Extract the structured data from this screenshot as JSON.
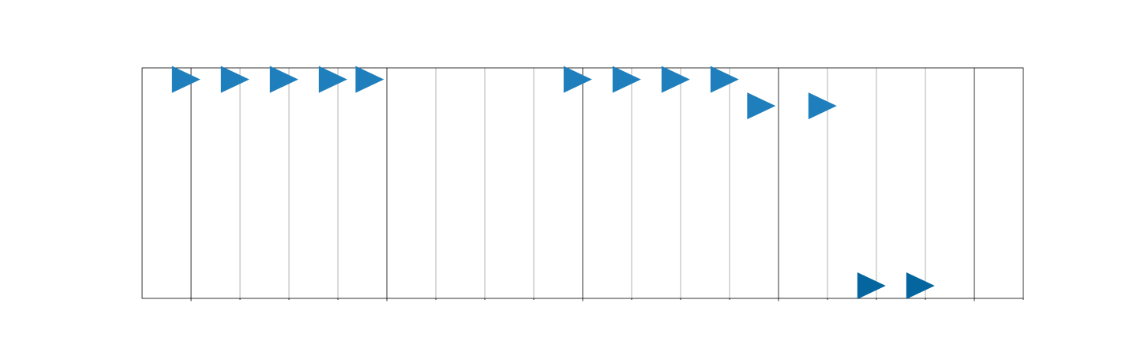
{
  "chart_data": {
    "type": "scatter",
    "marker": "triangle-right",
    "grid": true,
    "xlim": [
      0,
      18
    ],
    "ylim": [
      0,
      1
    ],
    "major_ticks": [
      1,
      5,
      9,
      13,
      17
    ],
    "minor_ticks": [
      2,
      3,
      4,
      6,
      7,
      8,
      10,
      11,
      12,
      14,
      15,
      16
    ],
    "colors": {
      "marker": "#1f7fbc",
      "marker_dark": "#04659f"
    },
    "series": [
      {
        "points": [
          {
            "x": 0.9,
            "y": 0.95
          },
          {
            "x": 1.9,
            "y": 0.95
          },
          {
            "x": 2.9,
            "y": 0.95
          },
          {
            "x": 3.9,
            "y": 0.95
          },
          {
            "x": 4.65,
            "y": 0.95
          },
          {
            "x": 8.9,
            "y": 0.95
          },
          {
            "x": 9.9,
            "y": 0.95
          },
          {
            "x": 10.9,
            "y": 0.95
          },
          {
            "x": 11.9,
            "y": 0.95
          },
          {
            "x": 12.65,
            "y": 0.835
          },
          {
            "x": 13.9,
            "y": 0.835
          },
          {
            "x": 14.9,
            "y": 0.055,
            "dark": true
          },
          {
            "x": 15.9,
            "y": 0.055,
            "dark": true
          }
        ]
      }
    ]
  }
}
